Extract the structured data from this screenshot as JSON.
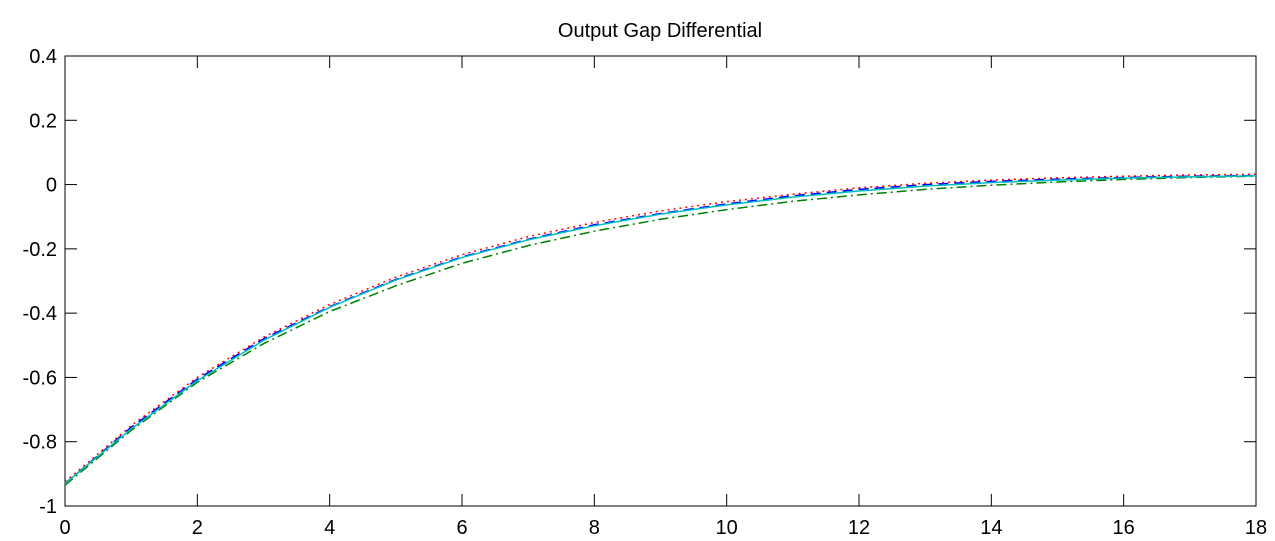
{
  "chart_data": {
    "type": "line",
    "title": "Output Gap Differential",
    "xlabel": "",
    "ylabel": "",
    "xlim": [
      0,
      18
    ],
    "ylim": [
      -1,
      0.4
    ],
    "x_ticks": [
      0,
      2,
      4,
      6,
      8,
      10,
      12,
      14,
      16,
      18
    ],
    "x_tick_labels": [
      "0",
      "2",
      "4",
      "6",
      "8",
      "10",
      "12",
      "14",
      "16",
      "18"
    ],
    "y_ticks": [
      -1,
      -0.8,
      -0.6,
      -0.4,
      -0.2,
      0,
      0.2,
      0.4
    ],
    "y_tick_labels": [
      "-1",
      "-0.8",
      "-0.6",
      "-0.4",
      "-0.2",
      "0",
      "0.2",
      "0.4"
    ],
    "grid": false,
    "x": [
      0,
      1,
      2,
      3,
      4,
      5,
      6,
      7,
      8,
      9,
      10,
      11,
      12,
      13,
      14,
      15,
      16,
      17,
      18
    ],
    "series": [
      {
        "color": "#0000ff",
        "style": "dashed",
        "values": [
          -0.93,
          -0.755,
          -0.605,
          -0.48,
          -0.38,
          -0.295,
          -0.225,
          -0.17,
          -0.125,
          -0.09,
          -0.06,
          -0.035,
          -0.015,
          0.0,
          0.01,
          0.017,
          0.022,
          0.026,
          0.028
        ]
      },
      {
        "color": "#008000",
        "style": "dashdot",
        "values": [
          -0.935,
          -0.765,
          -0.615,
          -0.495,
          -0.395,
          -0.315,
          -0.245,
          -0.19,
          -0.145,
          -0.108,
          -0.078,
          -0.052,
          -0.032,
          -0.015,
          -0.002,
          0.008,
          0.016,
          0.022,
          0.026
        ]
      },
      {
        "color": "#ff0000",
        "style": "dotted",
        "values": [
          -0.925,
          -0.75,
          -0.6,
          -0.475,
          -0.373,
          -0.288,
          -0.218,
          -0.162,
          -0.118,
          -0.082,
          -0.053,
          -0.03,
          -0.01,
          0.004,
          0.014,
          0.021,
          0.026,
          0.03,
          0.032
        ]
      },
      {
        "color": "#00bfbf",
        "style": "solid",
        "values": [
          -0.93,
          -0.76,
          -0.61,
          -0.485,
          -0.382,
          -0.297,
          -0.227,
          -0.172,
          -0.128,
          -0.092,
          -0.063,
          -0.039,
          -0.02,
          -0.005,
          0.006,
          0.014,
          0.02,
          0.024,
          0.027
        ]
      }
    ]
  }
}
